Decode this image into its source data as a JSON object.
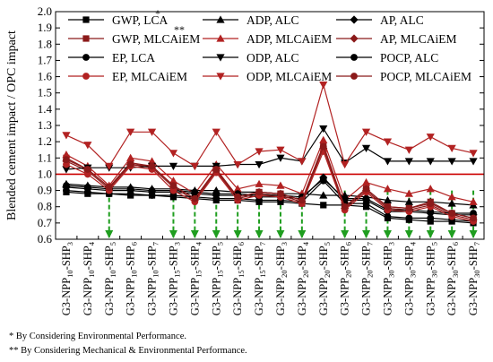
{
  "chart_data": {
    "type": "line",
    "ylabel": "Blended cement impact / OPC impact",
    "ylim": [
      0.6,
      2.0
    ],
    "yticks": [
      "0.6",
      "0.7",
      "0.8",
      "0.9",
      "1.0",
      "1.1",
      "1.2",
      "1.3",
      "1.4",
      "1.5",
      "1.6",
      "1.7",
      "1.8",
      "1.9",
      "2.0"
    ],
    "categories": [
      {
        "main": "G3-NPP",
        "s1": "10",
        "mid": "-SHP",
        "s2": "3"
      },
      {
        "main": "G3-NPP",
        "s1": "10",
        "mid": "-SHP",
        "s2": "4"
      },
      {
        "main": "G3-NPP",
        "s1": "10",
        "mid": "-SHP",
        "s2": "5"
      },
      {
        "main": "G3-NPP",
        "s1": "10",
        "mid": "-SHP",
        "s2": "6"
      },
      {
        "main": "G3-NPP",
        "s1": "10",
        "mid": "-SHP",
        "s2": "7"
      },
      {
        "main": "G3-NPP",
        "s1": "15",
        "mid": "-SHP",
        "s2": "3"
      },
      {
        "main": "G3-NPP",
        "s1": "15",
        "mid": "-SHP",
        "s2": "4"
      },
      {
        "main": "G3-NPP",
        "s1": "15",
        "mid": "-SHP",
        "s2": "5"
      },
      {
        "main": "G3-NPP",
        "s1": "15",
        "mid": "-SHP",
        "s2": "6"
      },
      {
        "main": "G3-NPP",
        "s1": "15",
        "mid": "-SHP",
        "s2": "7"
      },
      {
        "main": "G3-NPP",
        "s1": "20",
        "mid": "-SHP",
        "s2": "3"
      },
      {
        "main": "G3-NPP",
        "s1": "20",
        "mid": "-SHP",
        "s2": "4"
      },
      {
        "main": "G3-NPP",
        "s1": "20",
        "mid": "-SHP",
        "s2": "5"
      },
      {
        "main": "G3-NPP",
        "s1": "20",
        "mid": "-SHP",
        "s2": "6"
      },
      {
        "main": "G3-NPP",
        "s1": "20",
        "mid": "-SHP",
        "s2": "7"
      },
      {
        "main": "G3-NPP",
        "s1": "30",
        "mid": "-SHP",
        "s2": "3"
      },
      {
        "main": "G3-NPP",
        "s1": "30",
        "mid": "-SHP",
        "s2": "4"
      },
      {
        "main": "G3-NPP",
        "s1": "30",
        "mid": "-SHP",
        "s2": "5"
      },
      {
        "main": "G3-NPP",
        "s1": "30",
        "mid": "-SHP",
        "s2": "6"
      },
      {
        "main": "G3-NPP",
        "s1": "30",
        "mid": "-SHP",
        "s2": "7"
      }
    ],
    "reference_line": {
      "value": 1.0,
      "color": "#cc0000"
    },
    "highlight_arrows": {
      "color": "#1f9e1f",
      "from": 0.9,
      "category_indices": [
        2,
        5,
        6,
        7,
        8,
        9,
        10,
        11,
        13,
        14,
        15,
        16,
        17,
        18,
        19
      ]
    },
    "legend_annotations": {
      "lca": "*",
      "mlcaiem": "**"
    },
    "series": [
      {
        "name": "GWP, LCA",
        "legend_suffix": "*",
        "color": "#000000",
        "marker": "square",
        "values": [
          0.89,
          0.88,
          0.88,
          0.87,
          0.87,
          0.86,
          0.85,
          0.84,
          0.84,
          0.83,
          0.83,
          0.82,
          0.81,
          0.81,
          0.8,
          0.73,
          0.72,
          0.71,
          0.71,
          0.7
        ]
      },
      {
        "name": "ADP, ALC",
        "color": "#000000",
        "marker": "triangle-up",
        "values": [
          0.94,
          0.93,
          0.92,
          0.92,
          0.91,
          0.91,
          0.9,
          0.9,
          0.89,
          0.89,
          0.88,
          0.88,
          0.87,
          0.87,
          0.86,
          0.84,
          0.83,
          0.83,
          0.82,
          0.81
        ]
      },
      {
        "name": "AP, ALC",
        "color": "#000000",
        "marker": "diamond",
        "values": [
          0.92,
          0.91,
          0.9,
          0.9,
          0.89,
          0.89,
          0.88,
          0.87,
          0.87,
          0.86,
          0.86,
          0.85,
          0.98,
          0.84,
          0.84,
          0.77,
          0.77,
          0.76,
          0.75,
          0.75
        ]
      },
      {
        "name": "GWP, MLCAiEM",
        "legend_suffix": "**",
        "color": "#8b1a1a",
        "marker": "square",
        "values": [
          1.1,
          1.03,
          0.92,
          1.07,
          1.05,
          0.93,
          0.85,
          1.03,
          0.86,
          0.89,
          0.88,
          0.84,
          1.18,
          0.8,
          0.91,
          0.8,
          0.79,
          0.83,
          0.76,
          0.73
        ]
      },
      {
        "name": "ADP, MLCAiEM",
        "color": "#b22222",
        "marker": "triangle-up",
        "values": [
          1.12,
          1.05,
          0.93,
          1.1,
          1.08,
          0.96,
          0.88,
          1.06,
          0.91,
          0.94,
          0.93,
          0.88,
          1.21,
          0.84,
          0.95,
          0.91,
          0.88,
          0.91,
          0.86,
          0.83
        ]
      },
      {
        "name": "AP, MLCAiEM",
        "color": "#8b1a1a",
        "marker": "diamond",
        "values": [
          1.08,
          1.02,
          0.91,
          1.06,
          1.04,
          0.92,
          0.84,
          1.02,
          0.85,
          0.88,
          0.87,
          0.83,
          1.16,
          0.79,
          0.9,
          0.79,
          0.78,
          0.81,
          0.75,
          0.72
        ]
      },
      {
        "name": "EP, LCA",
        "color": "#000000",
        "marker": "circle",
        "values": [
          0.9,
          0.89,
          0.88,
          0.88,
          0.87,
          0.87,
          0.86,
          0.85,
          0.85,
          0.84,
          0.84,
          0.83,
          0.96,
          0.82,
          0.82,
          0.74,
          0.73,
          0.73,
          0.72,
          0.71
        ]
      },
      {
        "name": "ODP, ALC",
        "color": "#000000",
        "marker": "triangle-down",
        "values": [
          1.03,
          1.04,
          1.04,
          1.04,
          1.05,
          1.05,
          1.05,
          1.05,
          1.06,
          1.06,
          1.1,
          1.08,
          1.28,
          1.07,
          1.16,
          1.08,
          1.08,
          1.08,
          1.08,
          1.08
        ]
      },
      {
        "name": "POCP, ALC",
        "color": "#000000",
        "marker": "circle",
        "values": [
          0.93,
          0.92,
          0.91,
          0.91,
          0.9,
          0.9,
          0.89,
          0.88,
          0.88,
          0.87,
          0.87,
          0.86,
          0.97,
          0.85,
          0.85,
          0.78,
          0.78,
          0.77,
          0.76,
          0.76
        ]
      },
      {
        "name": "EP, MLCAiEM",
        "color": "#b22222",
        "marker": "circle",
        "values": [
          1.06,
          1.0,
          0.9,
          1.05,
          1.03,
          0.9,
          0.83,
          1.01,
          0.84,
          0.87,
          0.86,
          0.82,
          1.14,
          0.78,
          0.89,
          0.78,
          0.77,
          0.8,
          0.74,
          0.71
        ]
      },
      {
        "name": "ODP, MLCAiEM",
        "color": "#b22222",
        "marker": "triangle-down",
        "values": [
          1.24,
          1.18,
          1.05,
          1.26,
          1.26,
          1.13,
          1.05,
          1.26,
          1.06,
          1.14,
          1.15,
          1.08,
          1.55,
          1.06,
          1.26,
          1.2,
          1.15,
          1.23,
          1.16,
          1.13
        ]
      },
      {
        "name": "POCP, MLCAiEM",
        "color": "#8b1a1a",
        "marker": "circle",
        "values": [
          1.09,
          1.03,
          0.92,
          1.06,
          1.05,
          0.93,
          0.85,
          1.03,
          0.86,
          0.89,
          0.88,
          0.84,
          1.17,
          0.8,
          0.91,
          0.8,
          0.79,
          0.82,
          0.76,
          0.73
        ]
      }
    ]
  },
  "footnotes": {
    "single": "*  By Considering Environmental Performance.",
    "double": "** By Considering Mechanical & Environmental Performance."
  }
}
